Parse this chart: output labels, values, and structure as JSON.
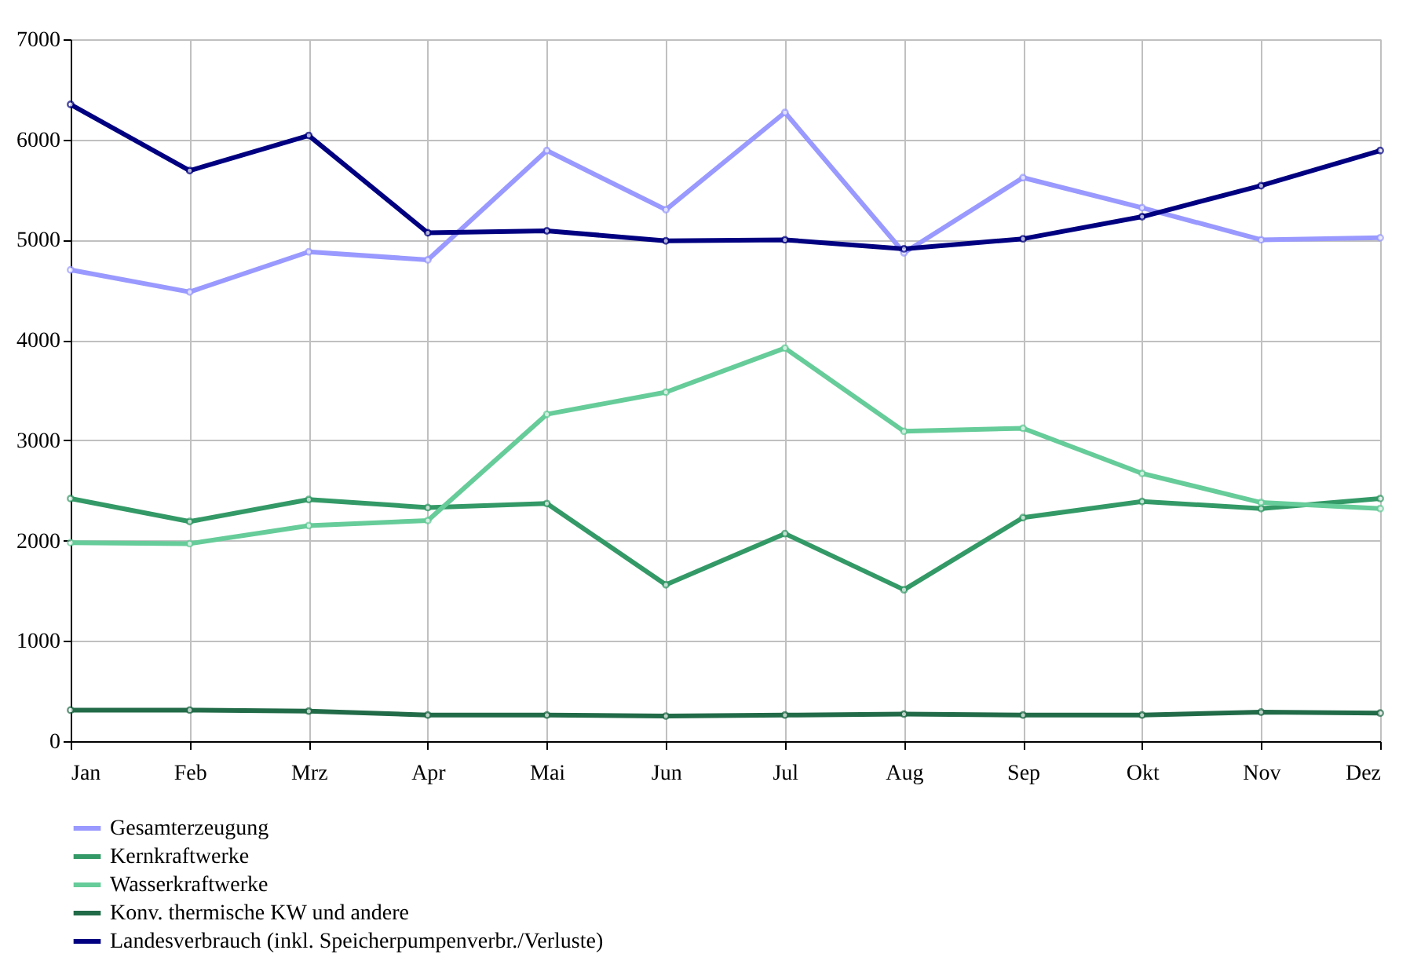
{
  "chart_data": {
    "type": "line",
    "categories": [
      "Jan",
      "Feb",
      "Mrz",
      "Apr",
      "Mai",
      "Jun",
      "Jul",
      "Aug",
      "Sep",
      "Okt",
      "Nov",
      "Dez"
    ],
    "series": [
      {
        "name": "Gesamterzeugung",
        "color": "#9999ff",
        "values": [
          4700,
          4480,
          4880,
          4800,
          5890,
          5300,
          6270,
          4870,
          5620,
          5320,
          5000,
          5020
        ]
      },
      {
        "name": "Kernkraftwerke",
        "color": "#339966",
        "values": [
          2420,
          2190,
          2410,
          2330,
          2370,
          1560,
          2070,
          1510,
          2230,
          2390,
          2320,
          2420
        ]
      },
      {
        "name": "Wasserkraftwerke",
        "color": "#66cc99",
        "values": [
          1980,
          1970,
          2150,
          2200,
          3260,
          3480,
          3920,
          3090,
          3120,
          2670,
          2380,
          2320
        ]
      },
      {
        "name": "Konv. thermische KW und andere",
        "color": "#226b48",
        "values": [
          310,
          310,
          300,
          260,
          260,
          250,
          260,
          270,
          260,
          260,
          290,
          280
        ]
      },
      {
        "name": "Landesverbrauch (inkl. Speicherpumpenverbr./Verluste)",
        "color": "#000080",
        "values": [
          6350,
          5690,
          6040,
          5070,
          5090,
          4990,
          5000,
          4910,
          5010,
          5230,
          5540,
          5890
        ]
      }
    ],
    "ylim": [
      0,
      7000
    ],
    "yticks": [
      0,
      1000,
      2000,
      3000,
      4000,
      5000,
      6000,
      7000
    ],
    "grid": true,
    "legend": "bottom",
    "marker": "circle",
    "line_style": "solid"
  }
}
